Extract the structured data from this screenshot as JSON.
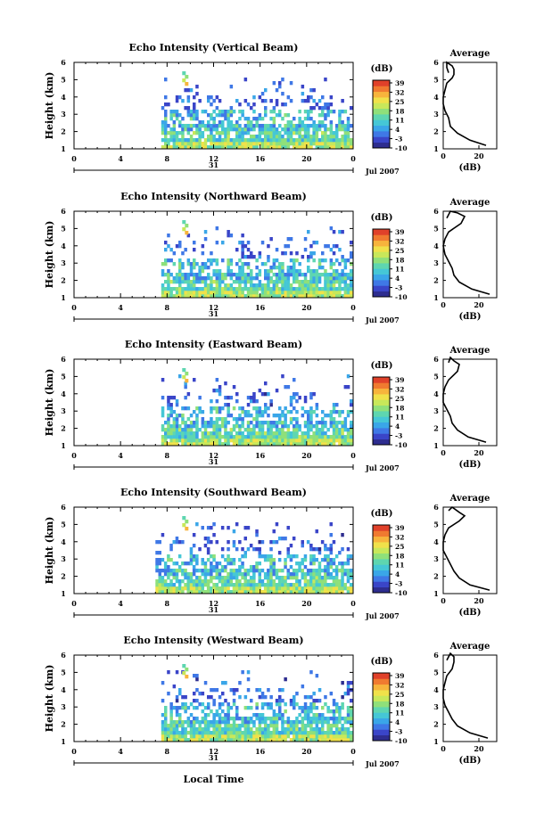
{
  "figure": {
    "xlabel": "Local Time",
    "date_label": "Jul 2007",
    "day_label": "31",
    "colorbar": {
      "unit": "(dB)",
      "ticks": [
        "39",
        "32",
        "25",
        "18",
        "11",
        "4",
        "-3",
        "-10"
      ],
      "colors": [
        "#2e2d8f",
        "#3a45c8",
        "#3f78e6",
        "#3aa6e8",
        "#45c7d6",
        "#5ed6b0",
        "#8fe07a",
        "#c8e85a",
        "#f0e14a",
        "#f7b43c",
        "#f07a30",
        "#e0412a"
      ]
    },
    "avg_title": "Average",
    "avg_xlabel": "(dB)"
  },
  "chart_data": [
    {
      "type": "heatmap",
      "title": "Echo Intensity (Vertical Beam)",
      "ylabel": "Height (km)",
      "xlim": [
        0,
        24
      ],
      "ylim": [
        1,
        6
      ],
      "xticks": [
        "0",
        "4",
        "8",
        "12",
        "16",
        "20",
        "0"
      ],
      "yticks": [
        "1",
        "2",
        "3",
        "4",
        "5",
        "6"
      ],
      "zlim": [
        -10,
        39
      ],
      "echo_start_hour": 7.5,
      "echo_top_km": 5.3
    },
    {
      "type": "heatmap",
      "title": "Echo Intensity (Northward Beam)",
      "ylabel": "Height (km)",
      "xlim": [
        0,
        24
      ],
      "ylim": [
        1,
        6
      ],
      "xticks": [
        "0",
        "4",
        "8",
        "12",
        "16",
        "20",
        "0"
      ],
      "yticks": [
        "1",
        "2",
        "3",
        "4",
        "5",
        "6"
      ],
      "zlim": [
        -10,
        39
      ],
      "echo_start_hour": 7.5,
      "echo_top_km": 5.3
    },
    {
      "type": "heatmap",
      "title": "Echo Intensity (Eastward Beam)",
      "ylabel": "Height (km)",
      "xlim": [
        0,
        24
      ],
      "ylim": [
        1,
        6
      ],
      "xticks": [
        "0",
        "4",
        "8",
        "12",
        "16",
        "20",
        "0"
      ],
      "yticks": [
        "1",
        "2",
        "3",
        "4",
        "5",
        "6"
      ],
      "zlim": [
        -10,
        39
      ],
      "echo_start_hour": 7.5,
      "echo_top_km": 5.3
    },
    {
      "type": "heatmap",
      "title": "Echo Intensity (Southward Beam)",
      "ylabel": "Height (km)",
      "xlim": [
        0,
        24
      ],
      "ylim": [
        1,
        6
      ],
      "xticks": [
        "0",
        "4",
        "8",
        "12",
        "16",
        "20",
        "0"
      ],
      "yticks": [
        "1",
        "2",
        "3",
        "4",
        "5",
        "6"
      ],
      "zlim": [
        -10,
        39
      ],
      "echo_start_hour": 7.0,
      "echo_top_km": 5.3
    },
    {
      "type": "heatmap",
      "title": "Echo Intensity (Westward Beam)",
      "ylabel": "Height (km)",
      "xlim": [
        0,
        24
      ],
      "ylim": [
        1,
        6
      ],
      "xticks": [
        "0",
        "4",
        "8",
        "12",
        "16",
        "20",
        "0"
      ],
      "yticks": [
        "1",
        "2",
        "3",
        "4",
        "5",
        "6"
      ],
      "zlim": [
        -10,
        39
      ],
      "echo_start_hour": 7.5,
      "echo_top_km": 5.3
    },
    {
      "type": "line",
      "title": "Average",
      "xlabel": "(dB)",
      "xlim": [
        0,
        30
      ],
      "ylim": [
        1,
        6
      ],
      "xticks": [
        "0",
        "20"
      ],
      "yticks": [
        "1",
        "2",
        "3",
        "4",
        "5",
        "6"
      ],
      "x": [
        24,
        15,
        8,
        4,
        3,
        1,
        0,
        0,
        1,
        2,
        5,
        6,
        6,
        5,
        2,
        2,
        3
      ],
      "y": [
        1.2,
        1.5,
        1.9,
        2.3,
        2.8,
        3.2,
        3.6,
        4.0,
        4.4,
        4.8,
        5.1,
        5.3,
        5.6,
        5.8,
        6.0,
        5.7,
        5.4
      ]
    },
    {
      "type": "line",
      "title": "Average",
      "xlabel": "(dB)",
      "xlim": [
        0,
        30
      ],
      "ylim": [
        1,
        6
      ],
      "xticks": [
        "0",
        "20"
      ],
      "yticks": [
        "1",
        "2",
        "3",
        "4",
        "5",
        "6"
      ],
      "x": [
        26,
        16,
        9,
        6,
        5,
        3,
        1,
        0,
        1,
        3,
        10,
        12,
        8,
        4,
        2
      ],
      "y": [
        1.2,
        1.5,
        1.9,
        2.3,
        2.7,
        3.1,
        3.5,
        4.0,
        4.4,
        4.8,
        5.3,
        5.7,
        5.9,
        6.0,
        5.6
      ]
    },
    {
      "type": "line",
      "title": "Average",
      "xlabel": "(dB)",
      "xlim": [
        0,
        30
      ],
      "ylim": [
        1,
        6
      ],
      "xticks": [
        "0",
        "20"
      ],
      "yticks": [
        "1",
        "2",
        "3",
        "4",
        "5",
        "6"
      ],
      "x": [
        24,
        14,
        8,
        5,
        4,
        2,
        0,
        0,
        1,
        3,
        8,
        9,
        6,
        4,
        3
      ],
      "y": [
        1.2,
        1.5,
        1.9,
        2.3,
        2.7,
        3.1,
        3.5,
        4.0,
        4.4,
        4.8,
        5.3,
        5.7,
        5.9,
        6.1,
        5.8
      ]
    },
    {
      "type": "line",
      "title": "Average",
      "xlabel": "(dB)",
      "xlim": [
        0,
        30
      ],
      "ylim": [
        1,
        6
      ],
      "xticks": [
        "0",
        "20"
      ],
      "yticks": [
        "1",
        "2",
        "3",
        "4",
        "5",
        "6"
      ],
      "x": [
        26,
        15,
        9,
        6,
        4,
        2,
        0,
        0,
        1,
        3,
        9,
        12,
        9,
        5,
        3
      ],
      "y": [
        1.2,
        1.5,
        1.9,
        2.3,
        2.7,
        3.1,
        3.5,
        4.0,
        4.4,
        4.8,
        5.2,
        5.5,
        5.7,
        6.0,
        5.8
      ]
    },
    {
      "type": "line",
      "title": "Average",
      "xlabel": "(dB)",
      "xlim": [
        0,
        30
      ],
      "ylim": [
        1,
        6
      ],
      "xticks": [
        "0",
        "20"
      ],
      "yticks": [
        "1",
        "2",
        "3",
        "4",
        "5",
        "6"
      ],
      "x": [
        25,
        15,
        8,
        5,
        3,
        1,
        0,
        0,
        1,
        2,
        5,
        6,
        6,
        4,
        2
      ],
      "y": [
        1.2,
        1.5,
        1.9,
        2.3,
        2.7,
        3.1,
        3.5,
        4.0,
        4.4,
        4.8,
        5.2,
        5.6,
        5.9,
        6.1,
        5.7
      ]
    }
  ]
}
